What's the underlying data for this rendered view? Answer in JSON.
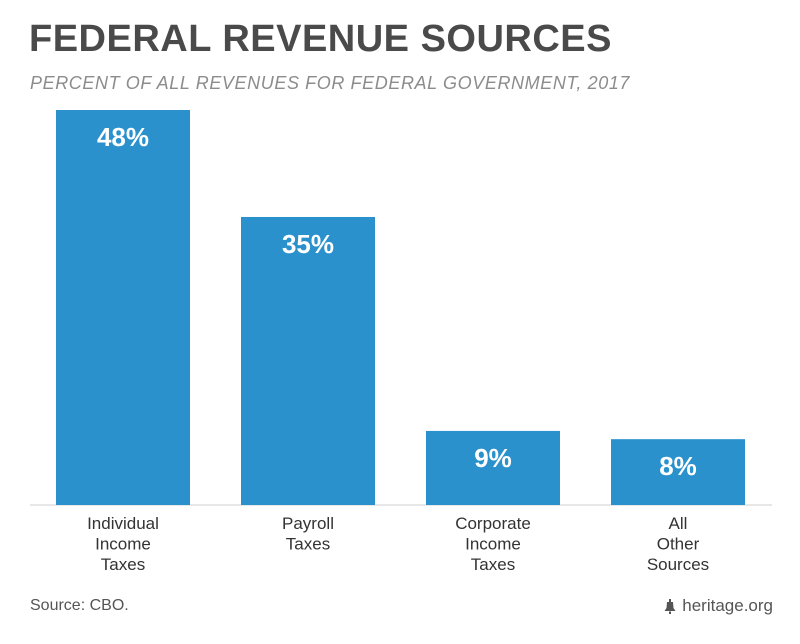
{
  "header": {
    "title": "FEDERAL REVENUE SOURCES",
    "subtitle": "PERCENT OF ALL REVENUES FOR FEDERAL GOVERNMENT, 2017"
  },
  "footer": {
    "source": "Source: CBO.",
    "credit": "heritage.org",
    "credit_icon": "liberty-bell-icon"
  },
  "colors": {
    "bar": "#2a91cd",
    "axis": "#cfcfcf",
    "label": "#333333"
  },
  "chart_data": {
    "type": "bar",
    "categories": [
      [
        "Individual",
        "Income",
        "Taxes"
      ],
      [
        "Payroll",
        "Taxes"
      ],
      [
        "Corporate",
        "Income",
        "Taxes"
      ],
      [
        "All",
        "Other",
        "Sources"
      ]
    ],
    "values": [
      48,
      35,
      9,
      8
    ],
    "data_labels": [
      "48%",
      "35%",
      "9%",
      "8%"
    ],
    "unit": "%",
    "ylim": [
      0,
      48
    ],
    "grid": false,
    "legend": "none"
  }
}
